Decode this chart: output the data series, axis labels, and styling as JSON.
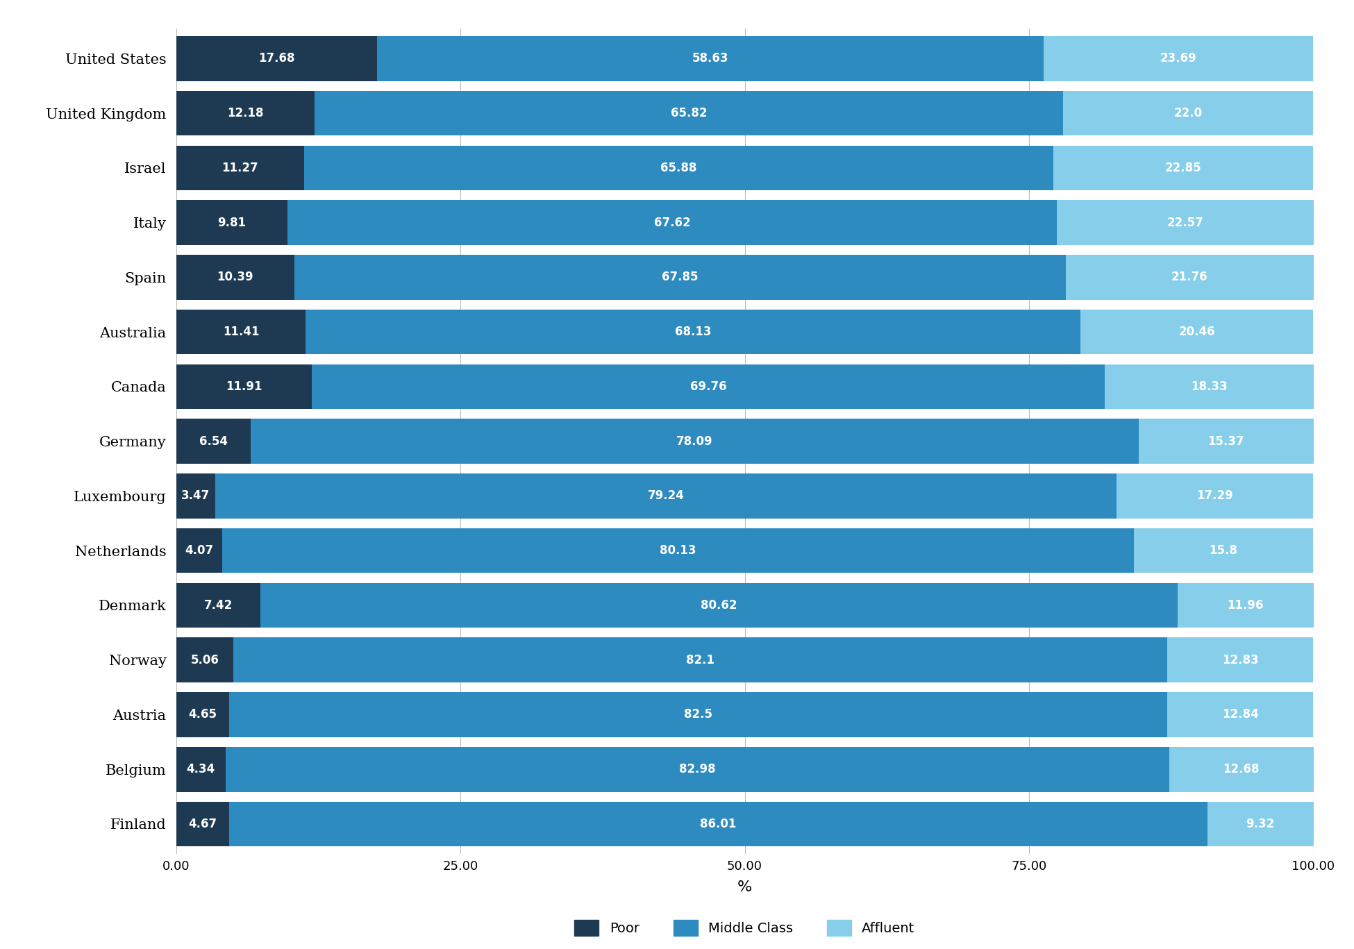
{
  "countries": [
    "Finland",
    "Belgium",
    "Austria",
    "Norway",
    "Denmark",
    "Netherlands",
    "Luxembourg",
    "Germany",
    "Canada",
    "Australia",
    "Spain",
    "Italy",
    "Israel",
    "United Kingdom",
    "United States"
  ],
  "poor": [
    4.67,
    4.34,
    4.65,
    5.06,
    7.42,
    4.07,
    3.47,
    6.54,
    11.91,
    11.41,
    10.39,
    9.81,
    11.27,
    12.18,
    17.68
  ],
  "middle_class": [
    86.01,
    82.98,
    82.5,
    82.1,
    80.62,
    80.13,
    79.24,
    78.09,
    69.76,
    68.13,
    67.85,
    67.62,
    65.88,
    65.82,
    58.63
  ],
  "affluent": [
    9.32,
    12.68,
    12.84,
    12.83,
    11.96,
    15.8,
    17.29,
    15.37,
    18.33,
    20.46,
    21.76,
    22.57,
    22.85,
    22.0,
    23.69
  ],
  "color_poor": "#1e3a52",
  "color_middle": "#2e8bc0",
  "color_affluent": "#87ceeb",
  "xlabel": "%",
  "legend_labels": [
    "Poor",
    "Middle Class",
    "Affluent"
  ],
  "bar_height": 0.82,
  "xlim": [
    0,
    100
  ],
  "xticks": [
    0,
    25,
    50,
    75,
    100
  ],
  "xtick_labels": [
    "0.00",
    "25.00",
    "50.00",
    "75.00",
    "100.00"
  ],
  "background_color": "#ffffff",
  "grid_color": "#bbbbbb",
  "text_color": "#ffffff",
  "label_fontsize": 12,
  "tick_fontsize": 13,
  "country_fontsize": 15,
  "legend_fontsize": 14,
  "xlabel_fontsize": 16
}
